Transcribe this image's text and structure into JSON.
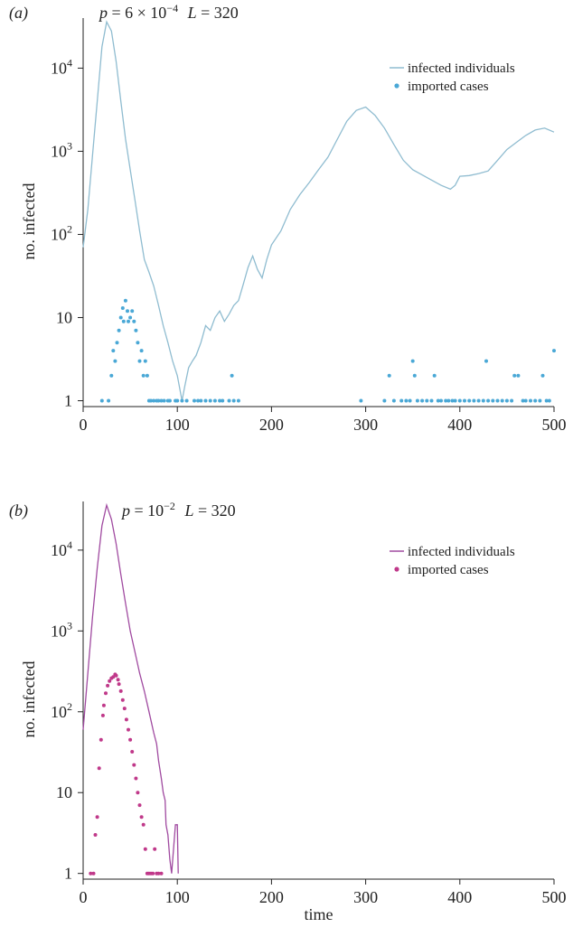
{
  "chart_data": [
    {
      "type": "line",
      "panel_label": "(a)",
      "title_parts": {
        "p_prefix": "p",
        "p_equals": " = 6 × 10",
        "p_exp": "−4",
        "L_prefix": "L",
        "L_value": " = 320"
      },
      "xlabel": "",
      "ylabel": "no. infected",
      "xlim": [
        0,
        500
      ],
      "ylim": [
        0.85,
        40000
      ],
      "yscale": "log",
      "x_ticks": [
        "0",
        "100",
        "200",
        "300",
        "400",
        "500"
      ],
      "y_ticks": [
        {
          "value": 1,
          "base": "1",
          "exp": ""
        },
        {
          "value": 10,
          "base": "10",
          "exp": ""
        },
        {
          "value": 100,
          "base": "10",
          "exp": "2"
        },
        {
          "value": 1000,
          "base": "10",
          "exp": "3"
        },
        {
          "value": 10000,
          "base": "10",
          "exp": "4"
        }
      ],
      "legend_position": "top-right",
      "series": [
        {
          "name": "infected individuals",
          "kind": "line",
          "color": "#8fbcd0",
          "points": [
            [
              0,
              70
            ],
            [
              5,
              200
            ],
            [
              10,
              900
            ],
            [
              15,
              4000
            ],
            [
              20,
              18000
            ],
            [
              25,
              36000
            ],
            [
              30,
              28000
            ],
            [
              35,
              12000
            ],
            [
              40,
              4000
            ],
            [
              45,
              1400
            ],
            [
              50,
              600
            ],
            [
              55,
              260
            ],
            [
              60,
              110
            ],
            [
              65,
              50
            ],
            [
              70,
              35
            ],
            [
              75,
              24
            ],
            [
              80,
              14
            ],
            [
              85,
              8
            ],
            [
              90,
              5
            ],
            [
              95,
              3
            ],
            [
              100,
              2
            ],
            [
              105,
              1
            ],
            [
              108,
              1.5
            ],
            [
              112,
              2.5
            ],
            [
              116,
              3
            ],
            [
              120,
              3.5
            ],
            [
              125,
              5
            ],
            [
              130,
              8
            ],
            [
              135,
              7
            ],
            [
              140,
              10
            ],
            [
              145,
              12
            ],
            [
              150,
              9
            ],
            [
              155,
              11
            ],
            [
              160,
              14
            ],
            [
              165,
              16
            ],
            [
              170,
              25
            ],
            [
              175,
              40
            ],
            [
              180,
              55
            ],
            [
              185,
              38
            ],
            [
              190,
              30
            ],
            [
              195,
              50
            ],
            [
              200,
              75
            ],
            [
              210,
              110
            ],
            [
              220,
              200
            ],
            [
              230,
              300
            ],
            [
              240,
              420
            ],
            [
              250,
              600
            ],
            [
              260,
              850
            ],
            [
              270,
              1400
            ],
            [
              280,
              2300
            ],
            [
              290,
              3100
            ],
            [
              300,
              3400
            ],
            [
              310,
              2700
            ],
            [
              320,
              1900
            ],
            [
              330,
              1200
            ],
            [
              340,
              780
            ],
            [
              350,
              600
            ],
            [
              360,
              520
            ],
            [
              370,
              450
            ],
            [
              380,
              390
            ],
            [
              390,
              350
            ],
            [
              395,
              390
            ],
            [
              400,
              500
            ],
            [
              410,
              510
            ],
            [
              420,
              540
            ],
            [
              430,
              580
            ],
            [
              440,
              780
            ],
            [
              450,
              1050
            ],
            [
              460,
              1280
            ],
            [
              470,
              1550
            ],
            [
              480,
              1800
            ],
            [
              490,
              1900
            ],
            [
              500,
              1700
            ]
          ]
        },
        {
          "name": "imported cases",
          "kind": "dots",
          "color": "#4aa8d6",
          "points": [
            [
              20,
              1
            ],
            [
              27,
              1
            ],
            [
              30,
              2
            ],
            [
              32,
              4
            ],
            [
              34,
              3
            ],
            [
              36,
              5
            ],
            [
              38,
              7
            ],
            [
              40,
              10
            ],
            [
              42,
              13
            ],
            [
              43,
              9
            ],
            [
              45,
              16
            ],
            [
              47,
              12
            ],
            [
              48,
              9
            ],
            [
              50,
              10
            ],
            [
              52,
              12
            ],
            [
              54,
              9
            ],
            [
              56,
              7
            ],
            [
              58,
              5
            ],
            [
              60,
              3
            ],
            [
              62,
              4
            ],
            [
              64,
              2
            ],
            [
              66,
              3
            ],
            [
              68,
              2
            ],
            [
              70,
              1
            ],
            [
              72,
              1
            ],
            [
              75,
              1
            ],
            [
              78,
              1
            ],
            [
              80,
              1
            ],
            [
              83,
              1
            ],
            [
              86,
              1
            ],
            [
              90,
              1
            ],
            [
              92,
              1
            ],
            [
              98,
              1
            ],
            [
              100,
              1
            ],
            [
              105,
              1
            ],
            [
              110,
              1
            ],
            [
              118,
              1
            ],
            [
              122,
              1
            ],
            [
              125,
              1
            ],
            [
              130,
              1
            ],
            [
              135,
              1
            ],
            [
              140,
              1
            ],
            [
              145,
              1
            ],
            [
              148,
              1
            ],
            [
              155,
              1
            ],
            [
              158,
              2
            ],
            [
              160,
              1
            ],
            [
              165,
              1
            ],
            [
              295,
              1
            ],
            [
              320,
              1
            ],
            [
              325,
              2
            ],
            [
              330,
              1
            ],
            [
              338,
              1
            ],
            [
              343,
              1
            ],
            [
              347,
              1
            ],
            [
              350,
              3
            ],
            [
              352,
              2
            ],
            [
              355,
              1
            ],
            [
              360,
              1
            ],
            [
              365,
              1
            ],
            [
              370,
              1
            ],
            [
              373,
              2
            ],
            [
              377,
              1
            ],
            [
              380,
              1
            ],
            [
              385,
              1
            ],
            [
              388,
              1
            ],
            [
              392,
              1
            ],
            [
              395,
              1
            ],
            [
              400,
              1
            ],
            [
              405,
              1
            ],
            [
              410,
              1
            ],
            [
              415,
              1
            ],
            [
              420,
              1
            ],
            [
              425,
              1
            ],
            [
              428,
              3
            ],
            [
              430,
              1
            ],
            [
              435,
              1
            ],
            [
              440,
              1
            ],
            [
              445,
              1
            ],
            [
              450,
              1
            ],
            [
              455,
              1
            ],
            [
              458,
              2
            ],
            [
              462,
              2
            ],
            [
              467,
              1
            ],
            [
              470,
              1
            ],
            [
              475,
              1
            ],
            [
              480,
              1
            ],
            [
              485,
              1
            ],
            [
              488,
              2
            ],
            [
              492,
              1
            ],
            [
              495,
              1
            ],
            [
              500,
              4
            ]
          ]
        }
      ]
    },
    {
      "type": "line",
      "panel_label": "(b)",
      "title_parts": {
        "p_prefix": "p",
        "p_equals": " = 10",
        "p_exp": "−2",
        "L_prefix": "L",
        "L_value": " = 320"
      },
      "xlabel": "time",
      "ylabel": "no. infected",
      "xlim": [
        0,
        500
      ],
      "ylim": [
        0.85,
        40000
      ],
      "yscale": "log",
      "x_ticks": [
        "0",
        "100",
        "200",
        "300",
        "400",
        "500"
      ],
      "y_ticks": [
        {
          "value": 1,
          "base": "1",
          "exp": ""
        },
        {
          "value": 10,
          "base": "10",
          "exp": ""
        },
        {
          "value": 100,
          "base": "10",
          "exp": "2"
        },
        {
          "value": 1000,
          "base": "10",
          "exp": "3"
        },
        {
          "value": 10000,
          "base": "10",
          "exp": "4"
        }
      ],
      "legend_position": "top-right",
      "series": [
        {
          "name": "infected individuals",
          "kind": "line",
          "color": "#a04aa0",
          "points": [
            [
              0,
              60
            ],
            [
              5,
              300
            ],
            [
              10,
              1500
            ],
            [
              15,
              6000
            ],
            [
              20,
              20000
            ],
            [
              25,
              36000
            ],
            [
              30,
              24000
            ],
            [
              35,
              12000
            ],
            [
              40,
              5000
            ],
            [
              45,
              2200
            ],
            [
              50,
              1000
            ],
            [
              55,
              550
            ],
            [
              60,
              300
            ],
            [
              65,
              180
            ],
            [
              70,
              100
            ],
            [
              75,
              55
            ],
            [
              78,
              40
            ],
            [
              80,
              25
            ],
            [
              83,
              15
            ],
            [
              85,
              10
            ],
            [
              87,
              8
            ],
            [
              88,
              4
            ],
            [
              90,
              3
            ],
            [
              92,
              1.5
            ],
            [
              94,
              1
            ],
            [
              96,
              2
            ],
            [
              98,
              4
            ],
            [
              100,
              4
            ],
            [
              101,
              1
            ]
          ]
        },
        {
          "name": "imported cases",
          "kind": "dots",
          "color": "#c0398a",
          "points": [
            [
              8,
              1
            ],
            [
              11,
              1
            ],
            [
              13,
              3
            ],
            [
              15,
              5
            ],
            [
              17,
              20
            ],
            [
              19,
              45
            ],
            [
              21,
              90
            ],
            [
              22,
              120
            ],
            [
              24,
              170
            ],
            [
              26,
              210
            ],
            [
              28,
              240
            ],
            [
              30,
              260
            ],
            [
              32,
              270
            ],
            [
              34,
              290
            ],
            [
              35,
              280
            ],
            [
              37,
              250
            ],
            [
              38,
              220
            ],
            [
              40,
              180
            ],
            [
              42,
              140
            ],
            [
              44,
              110
            ],
            [
              46,
              80
            ],
            [
              48,
              60
            ],
            [
              50,
              45
            ],
            [
              52,
              32
            ],
            [
              54,
              22
            ],
            [
              56,
              15
            ],
            [
              58,
              10
            ],
            [
              60,
              7
            ],
            [
              62,
              5
            ],
            [
              64,
              4
            ],
            [
              66,
              2
            ],
            [
              68,
              1
            ],
            [
              70,
              1
            ],
            [
              72,
              1
            ],
            [
              74,
              1
            ],
            [
              76,
              2
            ],
            [
              78,
              1
            ],
            [
              80,
              1
            ],
            [
              83,
              1
            ]
          ]
        }
      ]
    }
  ]
}
